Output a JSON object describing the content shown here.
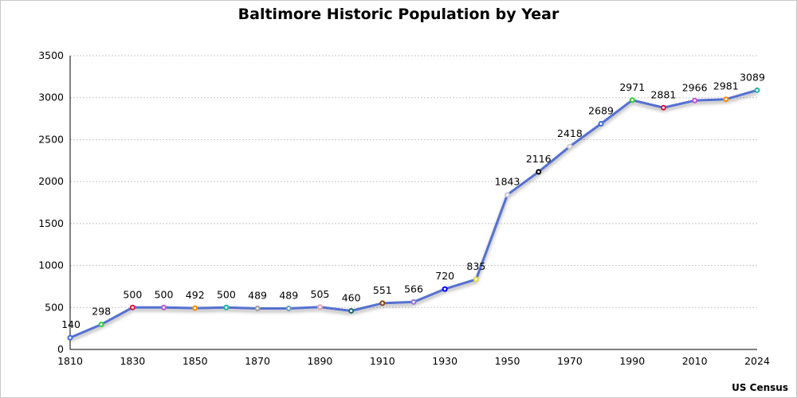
{
  "chart_data": {
    "type": "line",
    "title": "Baltimore Historic Population by Year",
    "source": "US Census",
    "categories": [
      "1810",
      "1820",
      "1830",
      "1840",
      "1850",
      "1860",
      "1870",
      "1880",
      "1890",
      "1900",
      "1910",
      "1920",
      "1930",
      "1940",
      "1950",
      "1960",
      "1970",
      "1980",
      "1990",
      "2000",
      "2010",
      "2020",
      "2024"
    ],
    "x_tick_labels": [
      "1810",
      "1830",
      "1850",
      "1870",
      "1890",
      "1910",
      "1930",
      "1950",
      "1970",
      "1990",
      "2010",
      "2024"
    ],
    "series": [
      {
        "values": [
          140,
          298,
          500,
          500,
          492,
          500,
          489,
          489,
          505,
          460,
          551,
          566,
          720,
          835,
          1843,
          2116,
          2418,
          2689,
          2971,
          2881,
          2966,
          2981,
          3089
        ],
        "line_color": "#5470d0",
        "marker_colors": [
          "#4169e1",
          "#32cd32",
          "#dc143c",
          "#ba55d3",
          "#ff8c00",
          "#20b2aa",
          "#999999",
          "#6a9ec0",
          "#e8a0b4",
          "#1f6f6f",
          "#8b4513",
          "#9370db",
          "#0000ff",
          "#dede40",
          "#c8c8e8",
          "#000000",
          "#cccccc",
          "#4169e1",
          "#32cd32",
          "#dc143c",
          "#ba55d3",
          "#ff8c00",
          "#20b2aa"
        ]
      }
    ],
    "data_labels": true,
    "ylim": [
      0,
      3500
    ],
    "y_ticks": [
      0,
      500,
      1000,
      1500,
      2000,
      2500,
      3000,
      3500
    ],
    "grid": "horizontal dotted",
    "legend": "none"
  }
}
